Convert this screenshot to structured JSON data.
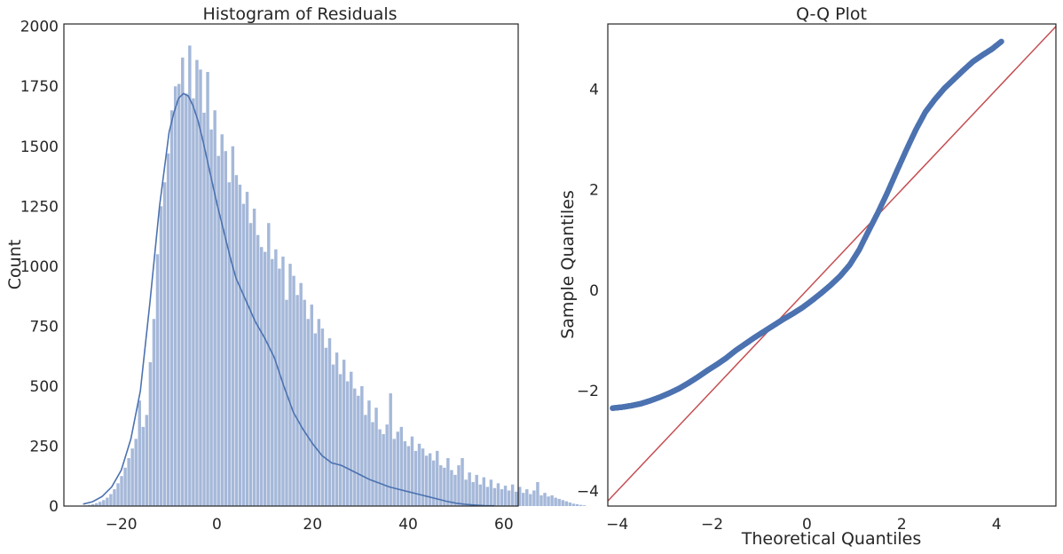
{
  "chart_data": [
    {
      "type": "bar",
      "title": "Histogram of Residuals",
      "xlabel": "",
      "ylabel": "Count",
      "xlim": [
        -32,
        63
      ],
      "ylim": [
        0,
        2010
      ],
      "xticks": [
        -20,
        0,
        20,
        40,
        60
      ],
      "yticks": [
        0,
        250,
        500,
        750,
        1000,
        1250,
        1500,
        1750,
        2000
      ],
      "grid": false,
      "bin_width": 0.75,
      "bin_start": -27.75,
      "values": [
        3,
        5,
        8,
        12,
        18,
        25,
        35,
        50,
        70,
        95,
        125,
        160,
        200,
        240,
        280,
        440,
        330,
        380,
        600,
        780,
        1050,
        1250,
        1350,
        1470,
        1650,
        1750,
        1760,
        1870,
        1720,
        1920,
        1700,
        1860,
        1820,
        1640,
        1810,
        1570,
        1650,
        1460,
        1550,
        1480,
        1350,
        1500,
        1380,
        1340,
        1260,
        1310,
        1180,
        1240,
        1130,
        1080,
        1060,
        1180,
        1030,
        1070,
        990,
        1040,
        860,
        1010,
        960,
        880,
        930,
        860,
        780,
        840,
        720,
        780,
        740,
        660,
        700,
        590,
        640,
        550,
        610,
        520,
        560,
        490,
        460,
        500,
        380,
        440,
        350,
        410,
        320,
        300,
        340,
        470,
        280,
        310,
        330,
        270,
        250,
        290,
        230,
        260,
        240,
        210,
        220,
        190,
        230,
        170,
        160,
        200,
        150,
        130,
        170,
        200,
        110,
        140,
        100,
        130,
        90,
        120,
        80,
        110,
        75,
        95,
        70,
        85,
        65,
        90,
        60,
        80,
        55,
        70,
        50,
        65,
        100,
        45,
        55,
        40,
        45,
        35,
        30,
        25,
        20,
        15,
        10,
        8,
        5,
        3
      ],
      "kde": {
        "x": [
          -28,
          -26,
          -24,
          -22,
          -20,
          -18,
          -16,
          -14,
          -12,
          -10,
          -9,
          -8,
          -7,
          -6,
          -5,
          -4,
          -3,
          -2,
          -1,
          0,
          1,
          2,
          3,
          4,
          6,
          8,
          10,
          12,
          14,
          16,
          18,
          20,
          22,
          24,
          26,
          28,
          30,
          32,
          34,
          36,
          38,
          40,
          42,
          44,
          46,
          48,
          50,
          52,
          54,
          56,
          58
        ],
        "y": [
          8,
          18,
          40,
          80,
          150,
          280,
          480,
          850,
          1250,
          1560,
          1640,
          1700,
          1720,
          1710,
          1670,
          1610,
          1530,
          1440,
          1350,
          1260,
          1180,
          1100,
          1020,
          950,
          860,
          770,
          700,
          620,
          500,
          390,
          320,
          260,
          210,
          180,
          170,
          150,
          130,
          110,
          95,
          80,
          70,
          60,
          50,
          40,
          30,
          20,
          12,
          7,
          4,
          2,
          1
        ]
      },
      "colors": {
        "bars": "#a5b8d9",
        "kde": "#4c72b0"
      }
    },
    {
      "type": "scatter",
      "title": "Q-Q Plot",
      "xlabel": "Theoretical Quantiles",
      "ylabel": "Sample Quantiles",
      "xlim": [
        -4.2,
        5.25
      ],
      "ylim": [
        -4.3,
        5.3
      ],
      "xticks": [
        -4,
        -2,
        0,
        2,
        4
      ],
      "yticks": [
        -4,
        -2,
        0,
        2,
        4
      ],
      "grid": false,
      "points": {
        "x": [
          -4.1,
          -3.9,
          -3.7,
          -3.5,
          -3.3,
          -3.1,
          -2.9,
          -2.7,
          -2.5,
          -2.3,
          -2.1,
          -1.9,
          -1.7,
          -1.5,
          -1.3,
          -1.1,
          -0.9,
          -0.7,
          -0.5,
          -0.3,
          -0.1,
          0.1,
          0.3,
          0.5,
          0.7,
          0.9,
          1.1,
          1.3,
          1.5,
          1.7,
          1.9,
          2.1,
          2.3,
          2.5,
          2.7,
          2.9,
          3.1,
          3.3,
          3.5,
          3.7,
          3.9,
          4.1
        ],
        "y": [
          -2.35,
          -2.33,
          -2.3,
          -2.26,
          -2.2,
          -2.13,
          -2.05,
          -1.96,
          -1.85,
          -1.73,
          -1.6,
          -1.48,
          -1.35,
          -1.2,
          -1.07,
          -0.94,
          -0.82,
          -0.7,
          -0.58,
          -0.47,
          -0.35,
          -0.21,
          -0.06,
          0.1,
          0.28,
          0.5,
          0.8,
          1.18,
          1.55,
          1.95,
          2.38,
          2.8,
          3.2,
          3.55,
          3.8,
          4.02,
          4.2,
          4.38,
          4.55,
          4.68,
          4.8,
          4.95
        ]
      },
      "reference_line": {
        "slope": 1,
        "intercept": 0
      },
      "colors": {
        "points": "#4c72b0",
        "line": "#c44e52"
      }
    }
  ]
}
